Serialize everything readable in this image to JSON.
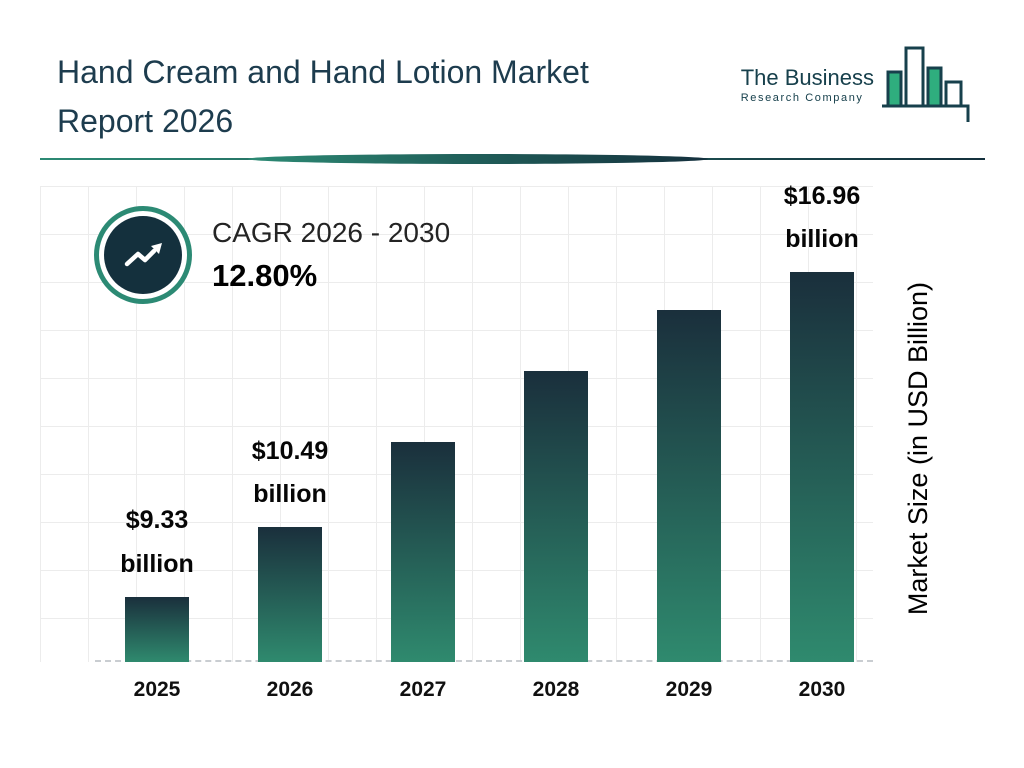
{
  "header": {
    "title_line1": "Hand Cream and Hand Lotion Market",
    "title_line2": "Report 2026",
    "logo": {
      "line1": "The Business",
      "line2": "Research Company"
    }
  },
  "cagr": {
    "label": "CAGR 2026 - 2030",
    "value": "12.80%"
  },
  "colors": {
    "accent_teal": "#2c8a74",
    "dark_navy": "#14303d",
    "title_text": "#1d3c4e",
    "logo_green": "#2fae7e",
    "logo_outline": "#17404c",
    "grid_line": "#ececec",
    "baseline_dash": "#c9cdd1"
  },
  "chart_data": {
    "type": "bar",
    "title": "Hand Cream and Hand Lotion Market Report 2026",
    "categories": [
      "2025",
      "2026",
      "2027",
      "2028",
      "2029",
      "2030"
    ],
    "values": [
      9.33,
      10.49,
      11.83,
      13.34,
      15.05,
      16.96
    ],
    "unit": "USD Billion",
    "xlabel": "",
    "ylabel": "Market Size (in USD Billion)",
    "value_labels": [
      {
        "line1": "$9.33",
        "line2": "billion"
      },
      {
        "line1": "$10.49",
        "line2": "billion"
      },
      null,
      null,
      null,
      {
        "line1": "$16.96",
        "line2": "billion"
      }
    ],
    "grid": true,
    "legend": false,
    "display_heights_pct": [
      13.7,
      28.4,
      46.3,
      61.3,
      74.1,
      82.1
    ],
    "colors": {
      "bar_top": "#1a2f3c",
      "bar_bottom": "#2f8a6e"
    }
  }
}
